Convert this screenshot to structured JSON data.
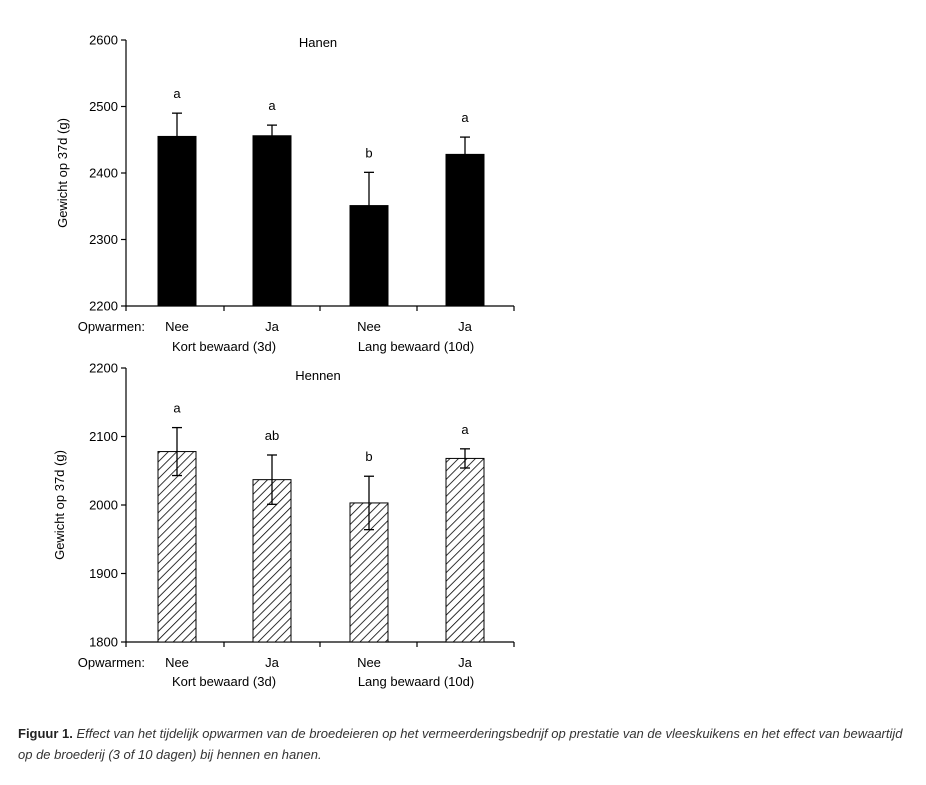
{
  "chart_data": [
    {
      "type": "bar",
      "title": "Hanen",
      "ylabel": "Gewicht op 37d (g)",
      "row_label": "Opwarmen:",
      "categories": [
        "Nee",
        "Ja",
        "Nee",
        "Ja"
      ],
      "groups": [
        "Kort bewaard (3d)",
        "Lang bewaard (10d)"
      ],
      "values": [
        2455,
        2456,
        2351,
        2428
      ],
      "errors": [
        35,
        16,
        50,
        26
      ],
      "letters": [
        "a",
        "a",
        "b",
        "a"
      ],
      "ylim": [
        2200,
        2600
      ],
      "yticks": [
        2200,
        2300,
        2400,
        2500,
        2600
      ],
      "bar_color": "#000000",
      "bar_fill": "solid",
      "grid": false
    },
    {
      "type": "bar",
      "title": "Hennen",
      "ylabel": "Gewicht op 37d (g)",
      "row_label": "Opwarmen:",
      "categories": [
        "Nee",
        "Ja",
        "Nee",
        "Ja"
      ],
      "groups": [
        "Kort bewaard (3d)",
        "Lang bewaard (10d)"
      ],
      "values": [
        2078,
        2037,
        2003,
        2068
      ],
      "errors": [
        35,
        36,
        39,
        14
      ],
      "letters": [
        "a",
        "ab",
        "b",
        "a"
      ],
      "ylim": [
        1800,
        2200
      ],
      "yticks": [
        1800,
        1900,
        2000,
        2100,
        2200
      ],
      "bar_color": "#000000",
      "bar_fill": "diagonal-hatch",
      "grid": false
    }
  ],
  "caption": {
    "label": "Figuur 1.",
    "text": "Effect van het tijdelijk opwarmen van de broedeieren op het vermeerderingsbedrijf op prestatie van de vleeskuikens en het effect van bewaartijd op de broederij (3 of 10 dagen) bij hennen en hanen."
  }
}
